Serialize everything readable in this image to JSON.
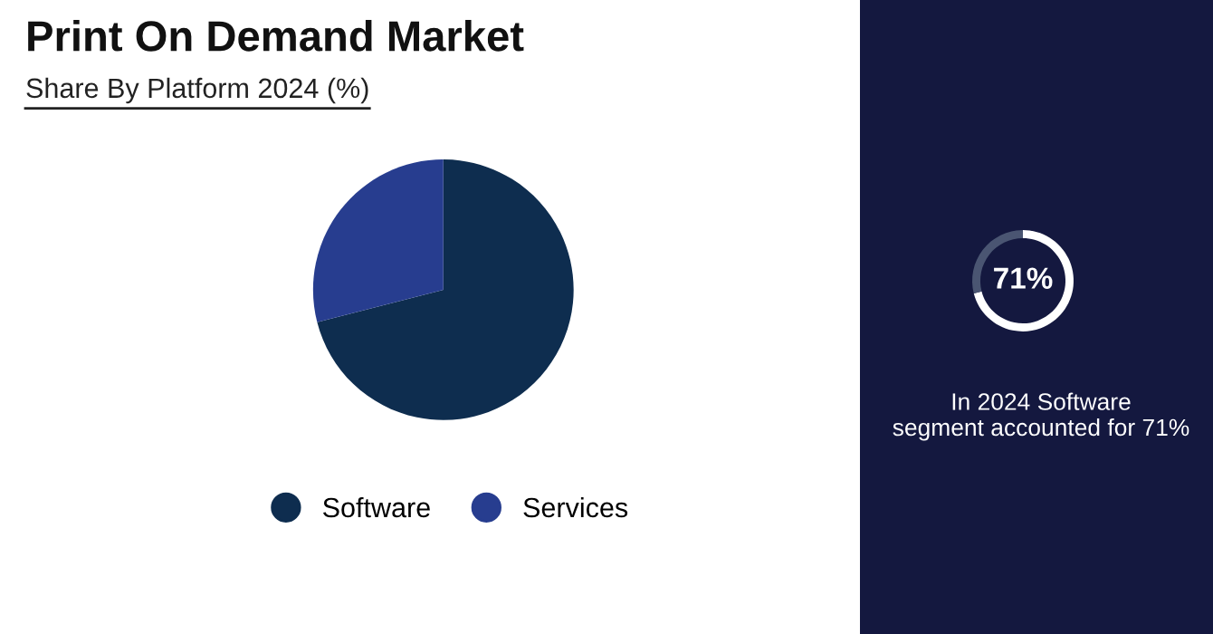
{
  "chart_data": [
    {
      "type": "pie",
      "title": "Print On Demand Market",
      "subtitle": "Share By Platform 2024 (%)",
      "categories": [
        "Software",
        "Services"
      ],
      "values": [
        71,
        29
      ],
      "colors": [
        "#0e2d4f",
        "#273d8f"
      ],
      "legend": "bottom"
    },
    {
      "type": "donut",
      "categories": [
        null,
        null
      ],
      "values": [
        71,
        29
      ],
      "colors": [
        "#ffffff",
        "#4a5572"
      ],
      "annotations": [
        "71%",
        "In 2024 Software\nsegment accounted for 71%"
      ]
    }
  ]
}
